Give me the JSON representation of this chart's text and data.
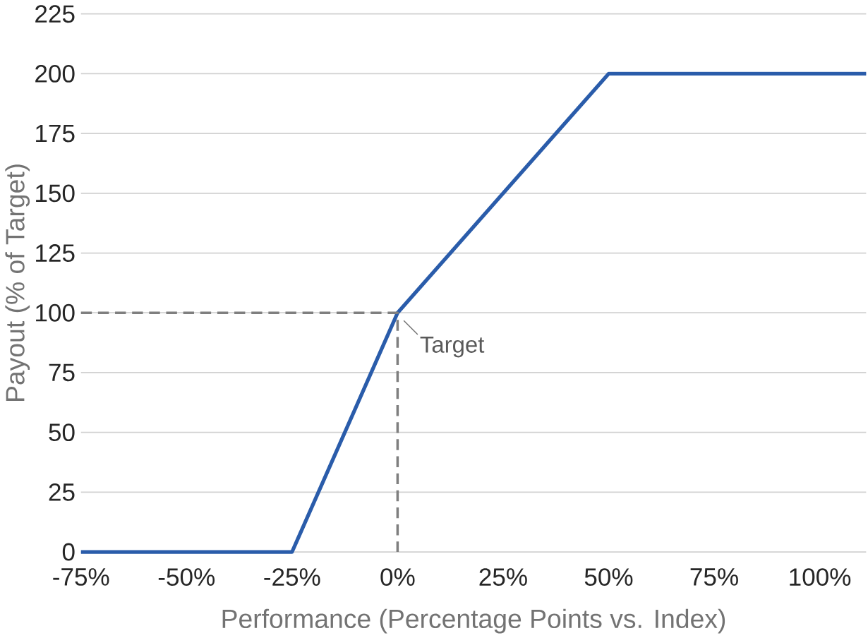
{
  "chart_data": {
    "type": "line",
    "xlabel": "Performance (Percentage Points vs. Index)",
    "ylabel": "Payout (% of Target)",
    "series": [
      {
        "color": "#2a5caa",
        "line_style": "solid",
        "x": [
          -75,
          -25,
          0,
          50,
          111
        ],
        "values": [
          0,
          0,
          100,
          200,
          200
        ]
      },
      {
        "color": "#7f7f7f",
        "line_style": "dashed",
        "x": [
          -75,
          0,
          0
        ],
        "values": [
          100,
          100,
          0
        ]
      }
    ],
    "annotations": [
      {
        "text": "Target",
        "x": 0,
        "y": 100
      }
    ],
    "xlim": [
      -75,
      111
    ],
    "ylim": [
      0,
      225
    ],
    "xticks": [
      {
        "value": -75,
        "label": "-75%"
      },
      {
        "value": -50,
        "label": "-50%"
      },
      {
        "value": -25,
        "label": "-25%"
      },
      {
        "value": 0,
        "label": "0%"
      },
      {
        "value": 25,
        "label": "25%"
      },
      {
        "value": 50,
        "label": "50%"
      },
      {
        "value": 75,
        "label": "75%"
      },
      {
        "value": 100,
        "label": "100%"
      }
    ],
    "yticks": [
      0,
      25,
      50,
      75,
      100,
      125,
      150,
      175,
      200,
      225
    ],
    "grid": "y"
  }
}
